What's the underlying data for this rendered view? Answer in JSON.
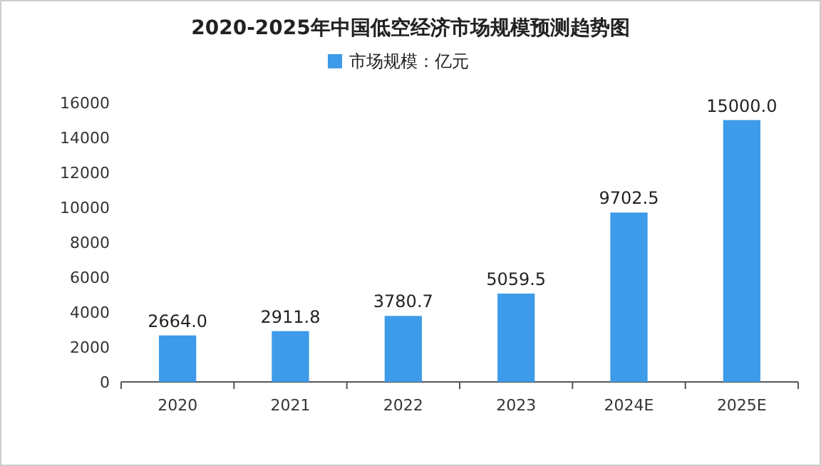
{
  "chart_data": {
    "type": "bar",
    "title": "2020-2025年中国低空经济市场规模预测趋势图",
    "categories": [
      "2020",
      "2021",
      "2022",
      "2023",
      "2024E",
      "2025E"
    ],
    "series": [
      {
        "name": "市场规模：亿元",
        "color": "#3d9be9",
        "values": [
          2664.0,
          2911.8,
          3780.7,
          5059.5,
          9702.5,
          15000.0
        ],
        "value_labels": [
          "2664.0",
          "2911.8",
          "3780.7",
          "5059.5",
          "9702.5",
          "15000.0"
        ]
      }
    ],
    "ylim": [
      0,
      16000
    ],
    "yticks": [
      0,
      2000,
      4000,
      6000,
      8000,
      10000,
      12000,
      14000,
      16000
    ],
    "legend": "top",
    "grid": false
  }
}
